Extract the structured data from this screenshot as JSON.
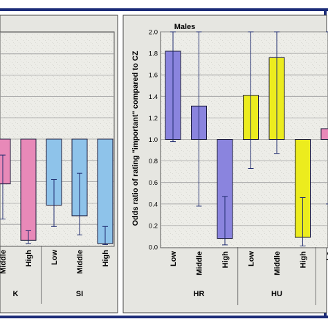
{
  "colors": {
    "border": "#1c2c78",
    "panel_bg": "#e9e9e4",
    "plot_bg": "#efefea",
    "grid": "#9a9a9a",
    "pink": "#e889b8",
    "blue": "#8ec3ea",
    "purple": "#8a84de",
    "yellow": "#ecec1e",
    "whisker": "#1e2a6e"
  },
  "chart_data": [
    {
      "type": "bar",
      "panel": "left (partially visible)",
      "baseline": 1.0,
      "ylim": [
        0,
        2
      ],
      "groups": [
        {
          "label": "K",
          "categories": [
            "Middle",
            "High"
          ],
          "values": [
            0.58,
            0.05
          ],
          "ci_low": [
            0.25,
            0.02
          ],
          "ci_high": [
            0.85,
            0.14
          ],
          "color": "pink"
        },
        {
          "label": "SI",
          "categories": [
            "Low",
            "Middle",
            "High"
          ],
          "values": [
            0.38,
            0.28,
            0.02
          ],
          "ci_low": [
            0.18,
            0.1,
            0.01
          ],
          "ci_high": [
            0.62,
            0.68,
            0.18
          ],
          "color": "blue"
        }
      ]
    },
    {
      "type": "bar",
      "panel": "right",
      "title": "Males",
      "ylabel": "Odds ratio of rating \"important\" compared to CZ",
      "baseline": 1.0,
      "ylim": [
        0,
        2
      ],
      "yticks": [
        "0.0",
        "0.2",
        "0.4",
        "0.6",
        "0.8",
        "1.0",
        "1.2",
        "1.4",
        "1.6",
        "1.8",
        "2.0"
      ],
      "grid": true,
      "groups": [
        {
          "label": "HR",
          "categories": [
            "Low",
            "Middle",
            "High"
          ],
          "values": [
            1.82,
            1.31,
            0.08
          ],
          "ci_low": [
            0.98,
            0.38,
            0.02
          ],
          "ci_high": [
            2.0,
            2.0,
            0.47
          ],
          "color": "purple"
        },
        {
          "label": "HU",
          "categories": [
            "Low",
            "Middle",
            "High"
          ],
          "values": [
            1.41,
            1.76,
            0.09
          ],
          "ci_low": [
            0.73,
            0.87,
            0.01
          ],
          "ci_high": [
            2.0,
            2.0,
            0.46
          ],
          "color": "yellow"
        },
        {
          "label": "",
          "categories": [
            "Lo"
          ],
          "values": [
            1.1
          ],
          "ci_low": [
            0.4
          ],
          "ci_high": [
            2.0
          ],
          "color": "pink"
        }
      ]
    }
  ]
}
